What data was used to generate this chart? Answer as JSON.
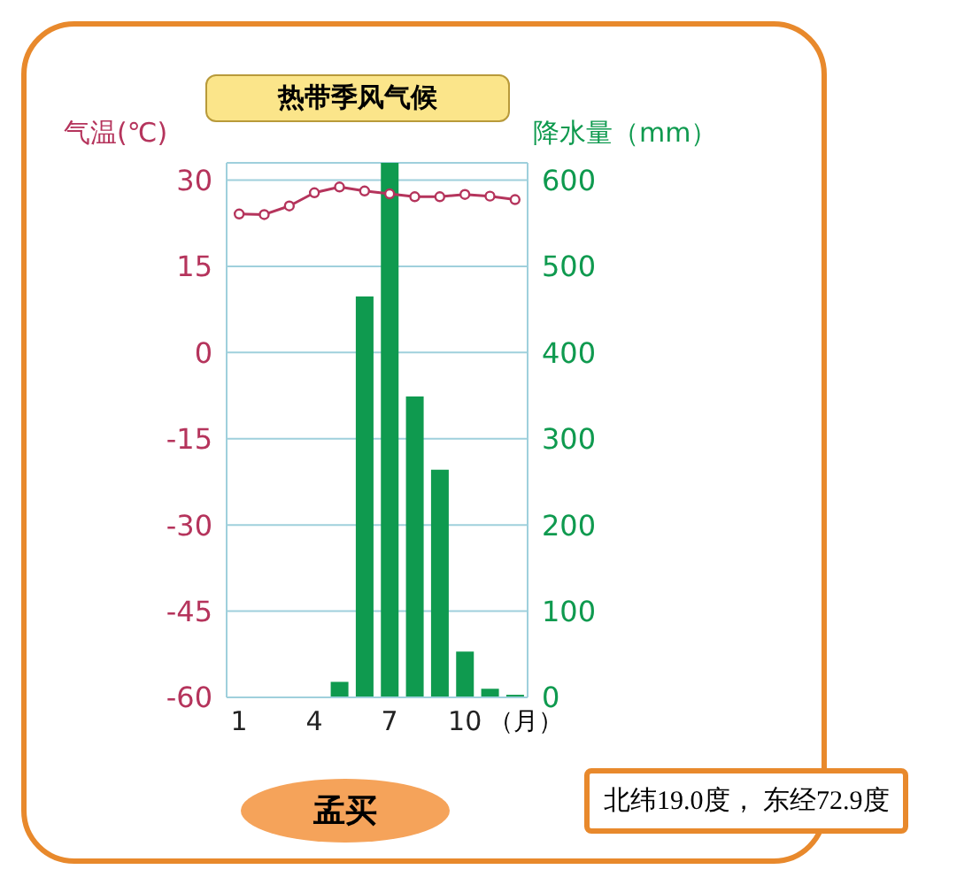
{
  "chart_data": {
    "type": "bar",
    "title": "热带季风气候",
    "ylabel": "气温(℃)",
    "y2label": "降水量（mm）",
    "xlabel": "（月）",
    "categories": [
      "1",
      null,
      null,
      "4",
      null,
      null,
      "7",
      null,
      null,
      "10",
      null,
      null
    ],
    "series": [
      {
        "type": "line",
        "color": "#b5345c",
        "values": [
          24.1,
          24,
          25.5,
          27.8,
          28.8,
          28.1,
          27.6,
          27.1,
          27.1,
          27.5,
          27.2,
          26.6
        ]
      },
      {
        "axis": "y2",
        "color": "#0f9a4f",
        "values": [
          1,
          1,
          1,
          1,
          18,
          465,
          620,
          349,
          264,
          53,
          10,
          3
        ]
      }
    ],
    "ylim": [
      -60,
      33
    ],
    "yticks": [
      -60,
      -45,
      -30,
      -15,
      0,
      15,
      30
    ],
    "y2lim": [
      0,
      620
    ],
    "y2ticks": [
      0,
      100,
      200,
      300,
      400,
      500,
      600
    ],
    "grid": "y",
    "marker": "circle",
    "annotations": [
      "孟买",
      "北纬19.0度， 东经72.9度"
    ]
  }
}
